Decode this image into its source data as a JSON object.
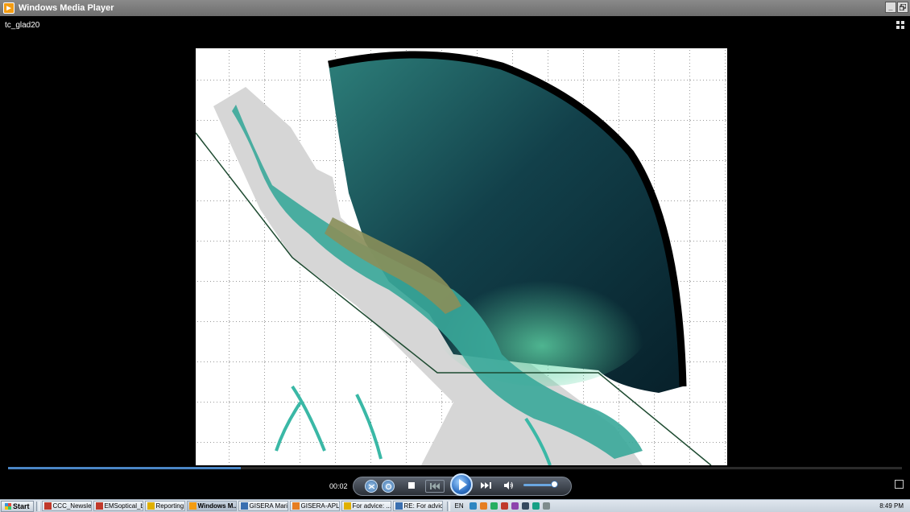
{
  "window": {
    "title": "Windows Media Player",
    "minimize": "_",
    "maximize": "̱□"
  },
  "media": {
    "title": "tc_glad20"
  },
  "player": {
    "time": "00:02",
    "progress": 0.26,
    "volume": 0.9
  },
  "taskbar": {
    "start_label": "Start",
    "buttons": [
      {
        "label": "CCC_Newslet...",
        "color": "#c0392b"
      },
      {
        "label": "EMSoptical_b...",
        "color": "#c0392b"
      },
      {
        "label": "Reporting",
        "color": "#e0b000"
      },
      {
        "label": "Windows M...",
        "color": "#f39c12"
      },
      {
        "label": "GISERA Mari...",
        "color": "#3a6fb0"
      },
      {
        "label": "GISERA-APL...",
        "color": "#e67e22"
      },
      {
        "label": "For advice: ...",
        "color": "#e0b000"
      },
      {
        "label": "RE: For advic...",
        "color": "#3a6fb0"
      }
    ],
    "language": "EN",
    "clock": "8:49 PM"
  },
  "colors": {
    "ocean_deep": "#0b2a30",
    "ocean_mid": "#1f6a68",
    "shallow": "#3fb8a0",
    "land_grey": "#d9d9d9",
    "accent_blue": "#4a86c5"
  }
}
